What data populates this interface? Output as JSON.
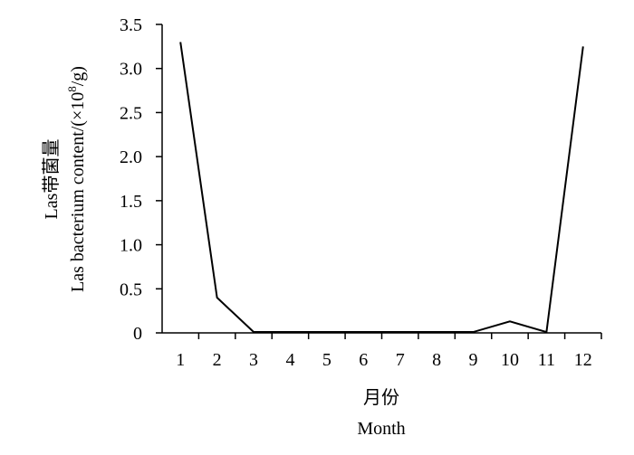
{
  "chart_data": {
    "type": "line",
    "title": "",
    "xlabel_cn": "月份",
    "xlabel_en": "Month",
    "ylabel_cn": "Las带菌量",
    "ylabel_en_prefix": "Las bacterium content/(×10",
    "ylabel_en_sup": "8",
    "ylabel_en_suffix": "/g)",
    "x": [
      1,
      2,
      3,
      4,
      5,
      6,
      7,
      8,
      9,
      10,
      11,
      12
    ],
    "x_tick_labels": [
      "1",
      "2",
      "3",
      "4",
      "5",
      "6",
      "7",
      "8",
      "9",
      "10",
      "11",
      "12"
    ],
    "series": [
      {
        "values": [
          3.3,
          0.4,
          0.01,
          0.01,
          0.01,
          0.01,
          0.01,
          0.01,
          0.01,
          0.13,
          0.01,
          3.25
        ]
      }
    ],
    "ylim": [
      0,
      3.5
    ],
    "y_ticks": [
      0,
      0.5,
      1.0,
      1.5,
      2.0,
      2.5,
      3.0,
      3.5
    ],
    "y_tick_labels": [
      "0",
      "0.5",
      "1.0",
      "1.5",
      "2.0",
      "2.5",
      "3.0",
      "3.5"
    ],
    "grid": false,
    "line_color": "#000000"
  }
}
